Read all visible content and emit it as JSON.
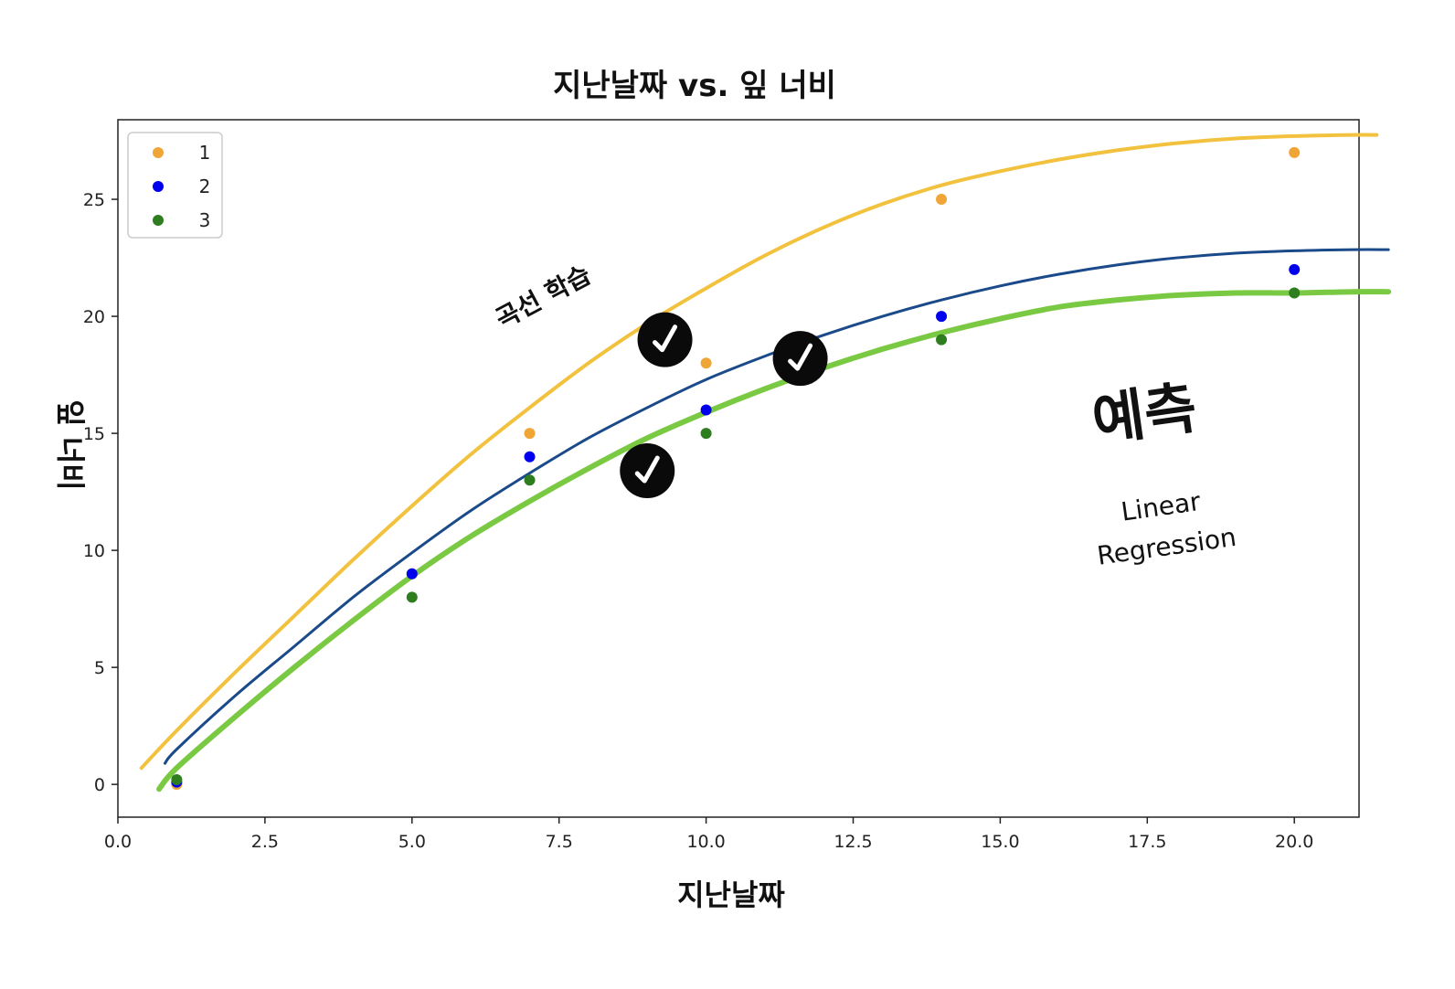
{
  "chart_data": {
    "type": "scatter",
    "title": "지난날짜 vs. 잎 너비",
    "xlabel": "지난날짜",
    "ylabel": "잎 너비",
    "xlim": [
      0,
      21.1
    ],
    "ylim": [
      -1.4,
      28.4
    ],
    "xticks": [
      0.0,
      2.5,
      5.0,
      7.5,
      10.0,
      12.5,
      15.0,
      17.5,
      20.0
    ],
    "xtick_labels": [
      "0.0",
      "2.5",
      "5.0",
      "7.5",
      "10.0",
      "12.5",
      "15.0",
      "17.5",
      "20.0"
    ],
    "yticks": [
      0,
      5,
      10,
      15,
      20,
      25
    ],
    "ytick_labels": [
      "0",
      "5",
      "10",
      "15",
      "20",
      "25"
    ],
    "grid": false,
    "legend_position": "top-left",
    "series": [
      {
        "name": "1",
        "color": "#f0a537",
        "x": [
          1,
          5,
          7,
          10,
          14,
          20
        ],
        "y": [
          0,
          9,
          15,
          18,
          25,
          27
        ]
      },
      {
        "name": "2",
        "color": "#0000ee",
        "x": [
          1,
          5,
          7,
          10,
          14,
          20
        ],
        "y": [
          0.1,
          9,
          14,
          16,
          20,
          22
        ]
      },
      {
        "name": "3",
        "color": "#2e7d1e",
        "x": [
          1,
          5,
          7,
          10,
          14,
          20
        ],
        "y": [
          0.2,
          8,
          13,
          15,
          19,
          21
        ]
      }
    ],
    "curves": [
      {
        "color": "#f2c23e",
        "x": [
          0.4,
          1,
          2,
          3,
          4,
          5,
          6,
          7,
          8,
          9,
          10,
          11,
          12,
          13,
          14,
          15,
          16,
          17,
          18,
          19,
          20,
          21,
          21.4
        ],
        "y": [
          0.7,
          2.3,
          4.8,
          7.2,
          9.6,
          11.9,
          14.1,
          16.1,
          18.0,
          19.7,
          21.2,
          22.6,
          23.8,
          24.8,
          25.6,
          26.2,
          26.7,
          27.1,
          27.4,
          27.6,
          27.7,
          27.75,
          27.75
        ]
      },
      {
        "color": "#1a4a8a",
        "x": [
          0.8,
          1,
          2,
          3,
          4,
          5,
          6,
          7,
          8,
          9,
          10,
          11,
          12,
          13,
          14,
          15,
          16,
          17,
          18,
          19,
          20,
          21,
          21.6
        ],
        "y": [
          0.9,
          1.5,
          3.8,
          5.9,
          8.0,
          9.9,
          11.7,
          13.3,
          14.8,
          16.1,
          17.3,
          18.3,
          19.2,
          20.0,
          20.7,
          21.3,
          21.8,
          22.2,
          22.5,
          22.7,
          22.8,
          22.85,
          22.85
        ]
      },
      {
        "color": "#7ac943",
        "x": [
          0.7,
          1,
          2,
          3,
          4,
          5,
          6,
          7,
          8,
          9,
          10,
          11,
          12,
          13,
          14,
          15,
          16,
          17,
          18,
          19,
          20,
          21,
          21.6
        ],
        "y": [
          -0.2,
          0.7,
          2.9,
          5.0,
          7.0,
          8.9,
          10.6,
          12.1,
          13.5,
          14.8,
          15.9,
          16.9,
          17.8,
          18.6,
          19.3,
          19.9,
          20.4,
          20.7,
          20.9,
          21.0,
          21.0,
          21.05,
          21.05
        ]
      }
    ],
    "checkmarks": [
      {
        "x": 9.3,
        "y": 19.0
      },
      {
        "x": 11.6,
        "y": 18.2
      },
      {
        "x": 9.0,
        "y": 13.4
      }
    ],
    "annotations": [
      {
        "text": "곡선 학습",
        "x": 7.3,
        "y": 20.5,
        "rotation": -28,
        "style": "mid"
      },
      {
        "text": "예측",
        "x": 17.5,
        "y": 15.0,
        "rotation": -8,
        "style": "big"
      },
      {
        "text": "Linear",
        "x": 17.75,
        "y": 11.5,
        "rotation": -8,
        "style": "small"
      },
      {
        "text": "Regression",
        "x": 17.85,
        "y": 9.8,
        "rotation": -8,
        "style": "small"
      }
    ]
  }
}
